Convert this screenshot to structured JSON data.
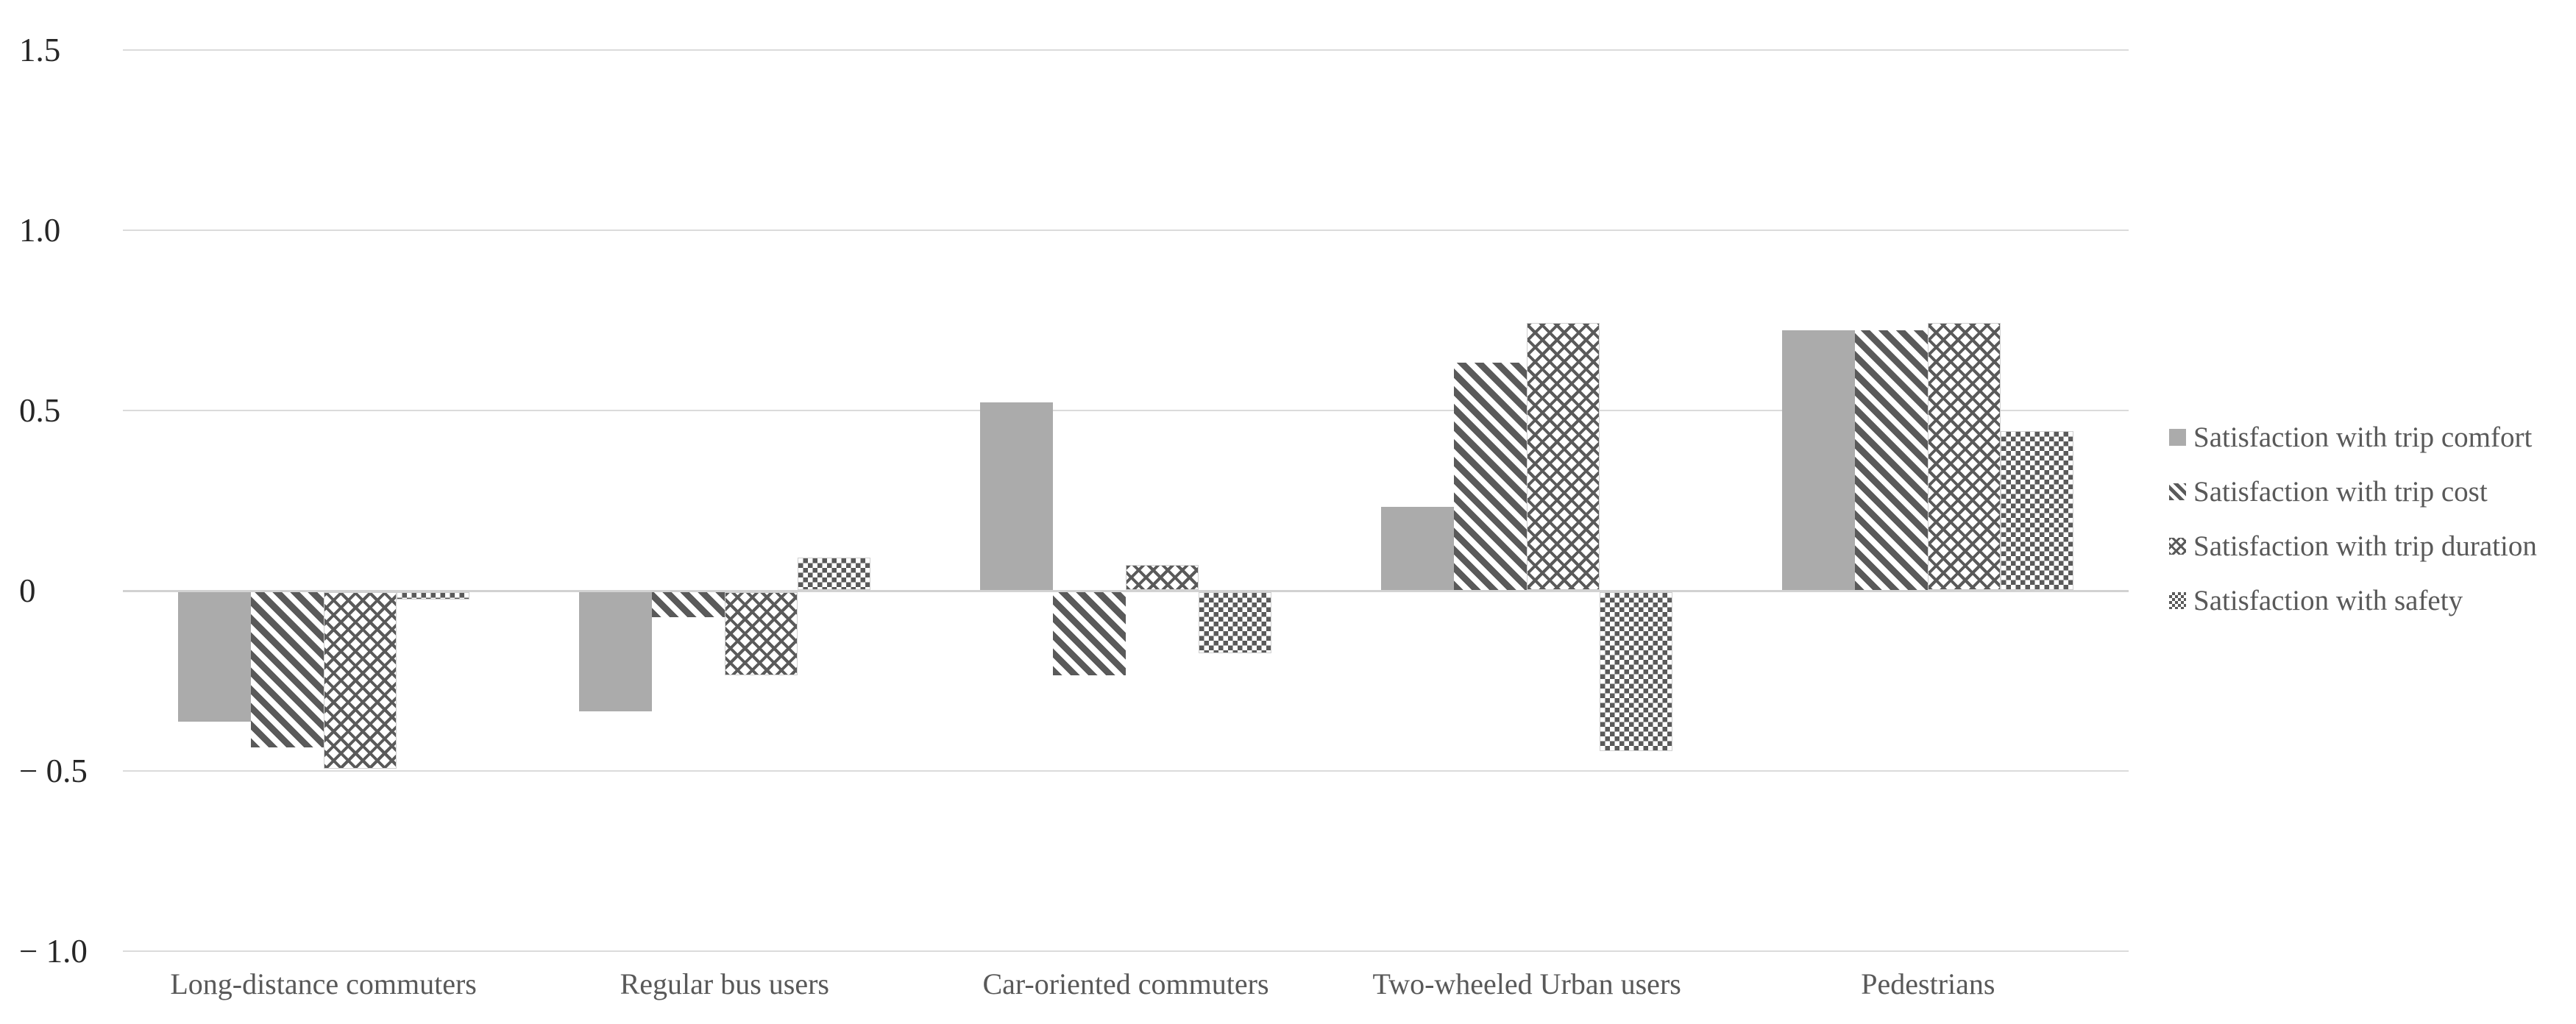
{
  "chart_data": {
    "type": "bar",
    "title": "",
    "xlabel": "",
    "ylabel": "",
    "categories": [
      "Long-distance commuters",
      "Regular bus users",
      "Car-oriented commuters",
      "Two-wheeled Urban users",
      "Pedestrians"
    ],
    "series": [
      {
        "name": "Satisfaction with trip comfort",
        "pattern": "solid",
        "values": [
          -0.36,
          -0.33,
          0.52,
          0.23,
          0.72
        ]
      },
      {
        "name": "Satisfaction with trip cost",
        "pattern": "diagonal",
        "values": [
          -0.43,
          -0.07,
          -0.23,
          0.63,
          0.72
        ]
      },
      {
        "name": "Satisfaction with trip duration",
        "pattern": "lattice",
        "values": [
          -0.49,
          -0.23,
          0.07,
          0.74,
          0.74
        ]
      },
      {
        "name": "Satisfaction with safety",
        "pattern": "checker",
        "values": [
          -0.02,
          0.09,
          -0.17,
          -0.44,
          0.44
        ]
      }
    ],
    "yticks": [
      {
        "value": 1.5,
        "label": "1.5"
      },
      {
        "value": 1.0,
        "label": "1.0"
      },
      {
        "value": 0.5,
        "label": "0.5"
      },
      {
        "value": 0.0,
        "label": "0"
      },
      {
        "value": -0.5,
        "label": "− 0.5"
      },
      {
        "value": -1.0,
        "label": "− 1.0"
      }
    ],
    "ylim": [
      -1.0,
      1.5
    ],
    "grid": "horizontal",
    "legend_position": "right"
  },
  "legend": {
    "items": [
      "Satisfaction with trip comfort",
      "Satisfaction with trip cost",
      "Satisfaction with trip duration",
      "Satisfaction with safety"
    ]
  },
  "colors": {
    "bar_solid": "#ABABAB",
    "pattern_ink": "#5A5A5A",
    "gridline": "#DBDBDB",
    "zero_line": "#D2D2D2",
    "tick_text": "#262626",
    "label_text": "#595959",
    "background": "#FFFFFF"
  }
}
